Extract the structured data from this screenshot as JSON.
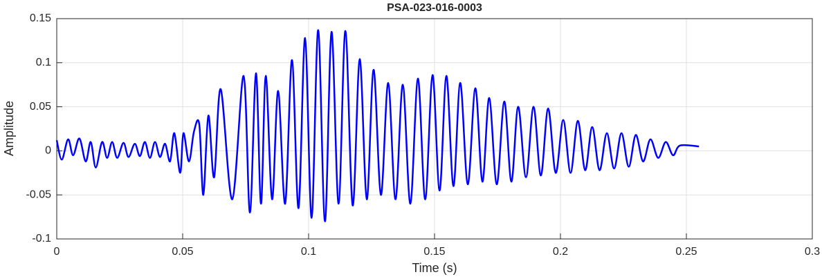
{
  "chart_data": {
    "type": "line",
    "title": "PSA-023-016-0003",
    "xlabel": "Time (s)",
    "ylabel": "Amplitude",
    "color": "#0000ff",
    "grid": true,
    "xlim": [
      0,
      0.3
    ],
    "xticks": [
      0,
      0.05,
      0.1,
      0.15,
      0.2,
      0.25,
      0.3
    ],
    "ylim": [
      -0.1,
      0.15
    ],
    "yticks": [
      -0.1,
      -0.05,
      0,
      0.05,
      0.1,
      0.15
    ],
    "x": [
      0,
      0.002,
      0.0045,
      0.0065,
      0.009,
      0.0115,
      0.0135,
      0.0155,
      0.018,
      0.02,
      0.022,
      0.024,
      0.0265,
      0.0285,
      0.031,
      0.033,
      0.035,
      0.037,
      0.039,
      0.041,
      0.043,
      0.045,
      0.0467,
      0.049,
      0.0503,
      0.0525,
      0.0545,
      0.0566,
      0.0582,
      0.0602,
      0.0625,
      0.0651,
      0.0697,
      0.0742,
      0.0767,
      0.0791,
      0.0811,
      0.083,
      0.0855,
      0.0879,
      0.0907,
      0.0934,
      0.096,
      0.0986,
      0.1012,
      0.1038,
      0.1065,
      0.1091,
      0.1119,
      0.1146,
      0.1175,
      0.1203,
      0.1231,
      0.1258,
      0.1287,
      0.1316,
      0.1345,
      0.1374,
      0.1404,
      0.1434,
      0.1463,
      0.1492,
      0.152,
      0.1547,
      0.1575,
      0.1602,
      0.1632,
      0.1662,
      0.169,
      0.1717,
      0.1747,
      0.1777,
      0.1805,
      0.1832,
      0.1863,
      0.1893,
      0.1922,
      0.1951,
      0.1981,
      0.2011,
      0.204,
      0.2069,
      0.2098,
      0.2126,
      0.2155,
      0.2184,
      0.2213,
      0.2242,
      0.2271,
      0.2299,
      0.2328,
      0.2357,
      0.2388,
      0.2418,
      0.2447,
      0.2475,
      0.255
    ],
    "values": [
      0.012,
      -0.01,
      0.013,
      -0.005,
      0.014,
      -0.012,
      0.01,
      -0.019,
      0.01,
      -0.008,
      0.01,
      -0.008,
      0.009,
      -0.007,
      0.008,
      -0.006,
      0.01,
      -0.008,
      0.01,
      -0.007,
      0.008,
      -0.012,
      0.02,
      -0.025,
      0.02,
      -0.012,
      0.022,
      0.03,
      -0.05,
      0.04,
      -0.03,
      0.07,
      -0.055,
      0.085,
      -0.07,
      0.088,
      -0.06,
      0.085,
      -0.055,
      0.068,
      -0.06,
      0.103,
      -0.065,
      0.128,
      -0.076,
      0.137,
      -0.08,
      0.135,
      -0.06,
      0.136,
      -0.062,
      0.104,
      -0.055,
      0.092,
      -0.05,
      0.077,
      -0.055,
      0.075,
      -0.06,
      0.082,
      -0.055,
      0.086,
      -0.045,
      0.085,
      -0.04,
      0.077,
      -0.038,
      0.071,
      -0.035,
      0.06,
      -0.038,
      0.056,
      -0.035,
      0.05,
      -0.03,
      0.05,
      -0.028,
      0.048,
      -0.025,
      0.035,
      -0.025,
      0.034,
      -0.022,
      0.027,
      -0.022,
      0.02,
      -0.02,
      0.02,
      -0.018,
      0.018,
      -0.012,
      0.013,
      -0.008,
      0.01,
      -0.005,
      0.006,
      0.005
    ]
  }
}
